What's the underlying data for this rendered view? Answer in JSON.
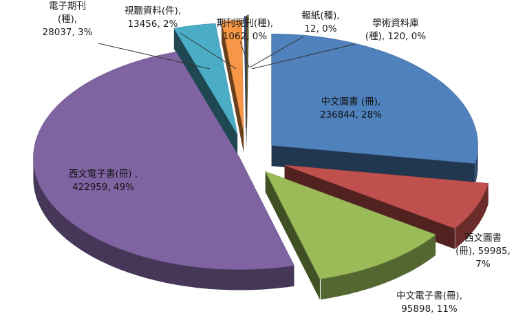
{
  "chart_data": {
    "type": "pie",
    "title": "",
    "style": "3d-exploded",
    "legend": "none",
    "slices": [
      {
        "name": "中文圖書 (冊)",
        "value": 236844,
        "percent": "28%",
        "color": "#4f81bd",
        "label_lines": [
          "中文圖書 (冊),",
          "236844, 28%"
        ]
      },
      {
        "name": "西文圖書 (冊)",
        "value": 59985,
        "percent": "7%",
        "color": "#c0504d",
        "label_lines": [
          "西文圖書",
          "(冊), 59985,",
          "7%"
        ]
      },
      {
        "name": "中文電子書(冊)",
        "value": 95898,
        "percent": "11%",
        "color": "#9bbb59",
        "label_lines": [
          "中文電子書(冊),",
          "95898, 11%"
        ]
      },
      {
        "name": "西文電子書(冊)",
        "value": 422959,
        "percent": "49%",
        "color": "#8064a2",
        "label_lines": [
          "西文電子書(冊) ,",
          "422959, 49%"
        ]
      },
      {
        "name": "電子期刊 (種)",
        "value": 28037,
        "percent": "3%",
        "color": "#4bacc6",
        "label_lines": [
          "電子期刊",
          "(種),",
          "28037, 3%"
        ]
      },
      {
        "name": "視聽資料(件)",
        "value": 13456,
        "percent": "2%",
        "color": "#f79646",
        "label_lines": [
          "視聽資料(件),",
          "13456, 2%"
        ]
      },
      {
        "name": "期刊現刊(種)",
        "value": 1062,
        "percent": "0%",
        "color": "#2c4d75",
        "label_lines": [
          "期刊現刊(種),",
          "1062, 0%"
        ]
      },
      {
        "name": "報紙(種)",
        "value": 12,
        "percent": "0%",
        "color": "#772c2a",
        "label_lines": [
          "報紙(種),",
          "12, 0%"
        ]
      },
      {
        "name": "學術資料庫 (種)",
        "value": 120,
        "percent": "0%",
        "color": "#5f7530",
        "label_lines": [
          "學術資料庫",
          "(種), 120, 0%"
        ]
      }
    ]
  }
}
